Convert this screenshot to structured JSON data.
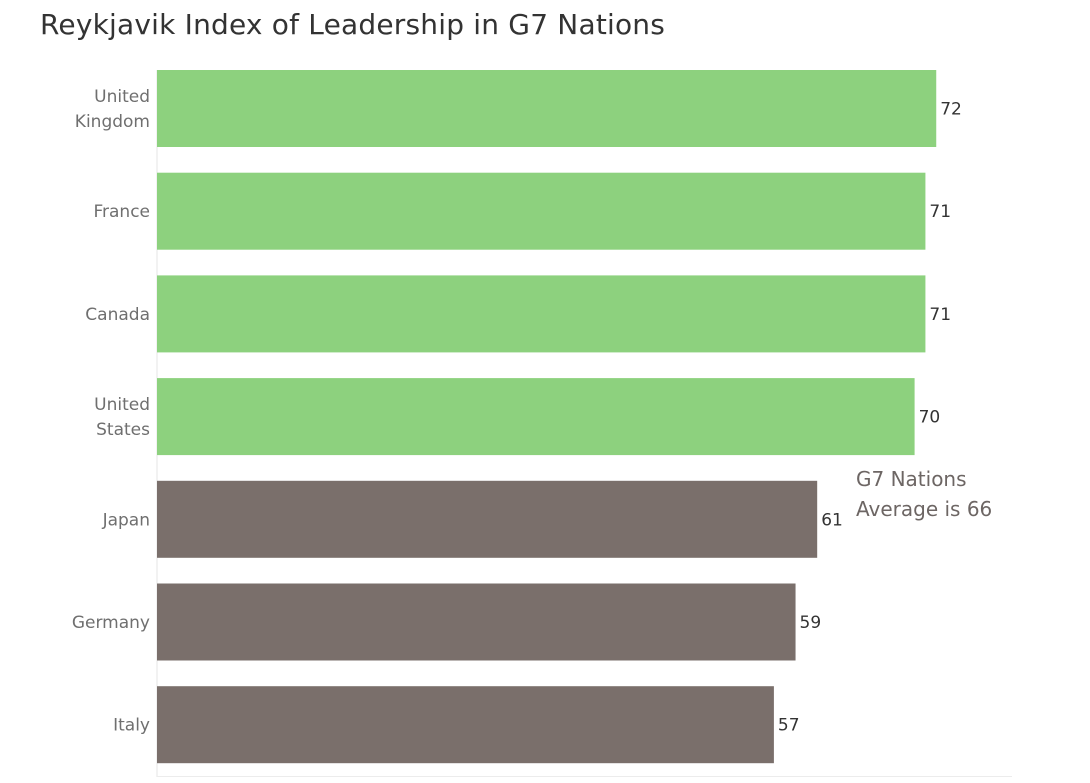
{
  "chart_data": {
    "type": "bar",
    "orientation": "horizontal",
    "title": "Reykjavik Index of Leadership in G7 Nations",
    "categories": [
      [
        "United",
        "Kingdom"
      ],
      [
        "France"
      ],
      [
        "Canada"
      ],
      [
        "United",
        "States"
      ],
      [
        "Japan"
      ],
      [
        "Germany"
      ],
      [
        "Italy"
      ]
    ],
    "values": [
      72,
      71,
      71,
      70,
      61,
      59,
      57
    ],
    "xlim": [
      0,
      79
    ],
    "grid": false,
    "colors": {
      "above_average": "#8dd17e",
      "below_average": "#7a6f6b"
    },
    "average": 66,
    "annotation": [
      "G7 Nations",
      "Average is 66"
    ]
  }
}
